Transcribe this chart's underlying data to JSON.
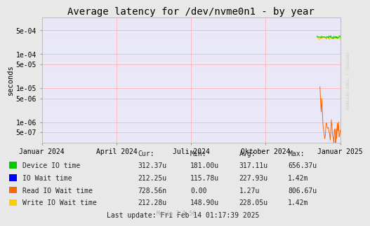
{
  "title": "Average latency for /dev/nvme0n1 - by year",
  "ylabel": "seconds",
  "background_color": "#e8e8e8",
  "plot_bg_color": "#e8e8f8",
  "grid_color_major": "#ffaaaa",
  "grid_color_minor": "#ffdddd",
  "watermark": "Munin 2.0.56",
  "rrdtool_label": "RRDTOOL / TOBI OETIKER",
  "xticklabels": [
    "Januar 2024",
    "April 2024",
    "Juli 2024",
    "Oktober 2024",
    "Januar 2025"
  ],
  "ytick_vals": [
    5e-07,
    1e-06,
    5e-06,
    1e-05,
    5e-05,
    0.0001,
    0.0005
  ],
  "ytick_labels": [
    "5e-07",
    "1e-06",
    "5e-06",
    "1e-05",
    "5e-05",
    "1e-04",
    "5e-04"
  ],
  "legend_entries": [
    {
      "label": "Device IO time",
      "color": "#00cc00"
    },
    {
      "label": "IO Wait time",
      "color": "#0000ff"
    },
    {
      "label": "Read IO Wait time",
      "color": "#ff6600"
    },
    {
      "label": "Write IO Wait time",
      "color": "#ffcc00"
    }
  ],
  "col_headers": [
    "Cur:",
    "Min:",
    "Avg:",
    "Max:"
  ],
  "table_values": [
    [
      "312.37u",
      "181.00u",
      "317.11u",
      "656.37u"
    ],
    [
      "212.25u",
      "115.78u",
      "227.93u",
      "1.42m"
    ],
    [
      "728.56n",
      "0.00",
      "1.27u",
      "806.67u"
    ],
    [
      "212.28u",
      "148.90u",
      "228.05u",
      "1.42m"
    ]
  ],
  "last_update": "Last update: Fri Feb 14 01:17:39 2025",
  "title_fontsize": 10,
  "tick_fontsize": 7,
  "legend_fontsize": 7
}
